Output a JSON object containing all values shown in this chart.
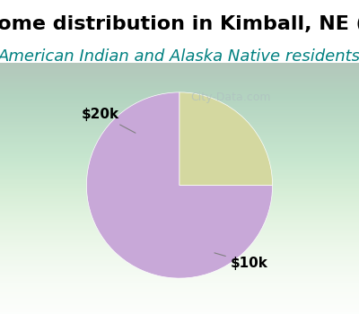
{
  "title": "Income distribution in Kimball, NE (%)",
  "subtitle": "American Indian and Alaska Native residents",
  "title_bg_color": "#00FFFF",
  "chart_bg_color_top": "#e8f5e8",
  "chart_bg_color": "#d8eed8",
  "slices": [
    {
      "label": "$10k",
      "value": 75,
      "color": "#c8a8d8"
    },
    {
      "label": "$20k",
      "value": 25,
      "color": "#d4d8a0"
    }
  ],
  "watermark": "City-Data.com",
  "title_fontsize": 16,
  "subtitle_fontsize": 13,
  "label_fontsize": 11,
  "startangle": 90,
  "fig_width": 4.0,
  "fig_height": 3.5
}
